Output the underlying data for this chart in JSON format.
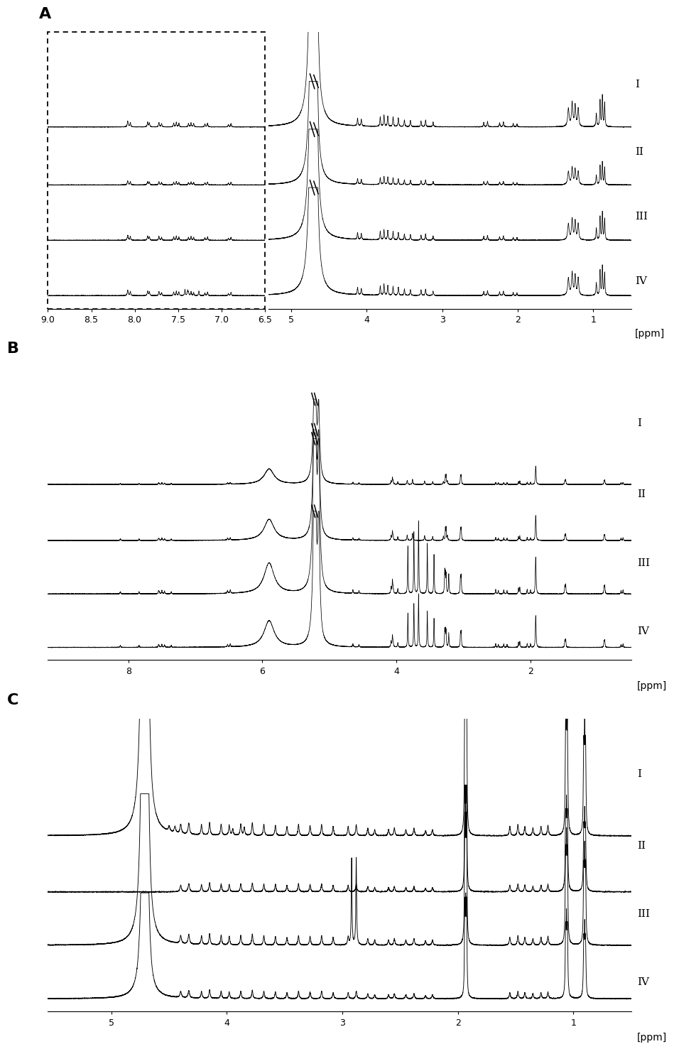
{
  "panel_A": {
    "label": "A",
    "xlim_left": [
      9.0,
      6.5
    ],
    "xlim_right": [
      5.3,
      0.5
    ],
    "xticks_left": [
      9.0,
      8.5,
      8.0,
      7.5,
      7.0,
      6.5
    ],
    "xticks_right": [
      5.0,
      4.0,
      3.0,
      2.0,
      1.0
    ],
    "xlabel": "[ppm]",
    "groups": [
      "I",
      "II",
      "III",
      "IV"
    ],
    "offsets": [
      3.2,
      2.1,
      1.05,
      0.0
    ],
    "scales": [
      0.9,
      0.65,
      0.8,
      0.85
    ]
  },
  "panel_B": {
    "label": "B",
    "xlim": [
      9.2,
      0.5
    ],
    "xticks": [
      8.0,
      6.0,
      4.0,
      2.0
    ],
    "xlabel": "[ppm]",
    "groups": [
      "I",
      "II",
      "III",
      "IV"
    ],
    "offsets": [
      3.2,
      2.1,
      1.05,
      0.0
    ],
    "scales": [
      0.55,
      0.75,
      1.1,
      0.95
    ]
  },
  "panel_C": {
    "label": "C",
    "xlim": [
      5.55,
      0.5
    ],
    "xticks": [
      5.0,
      4.0,
      3.0,
      2.0,
      1.0
    ],
    "xlabel": "[ppm]",
    "groups": [
      "I",
      "II",
      "III",
      "IV"
    ],
    "offsets": [
      3.2,
      2.1,
      1.05,
      0.0
    ],
    "scales": [
      1.0,
      0.7,
      0.85,
      0.65
    ]
  },
  "line_color": "#000000",
  "background_color": "#ffffff",
  "fontsize_panel": 16,
  "fontsize_group": 11,
  "fontsize_tick": 9
}
